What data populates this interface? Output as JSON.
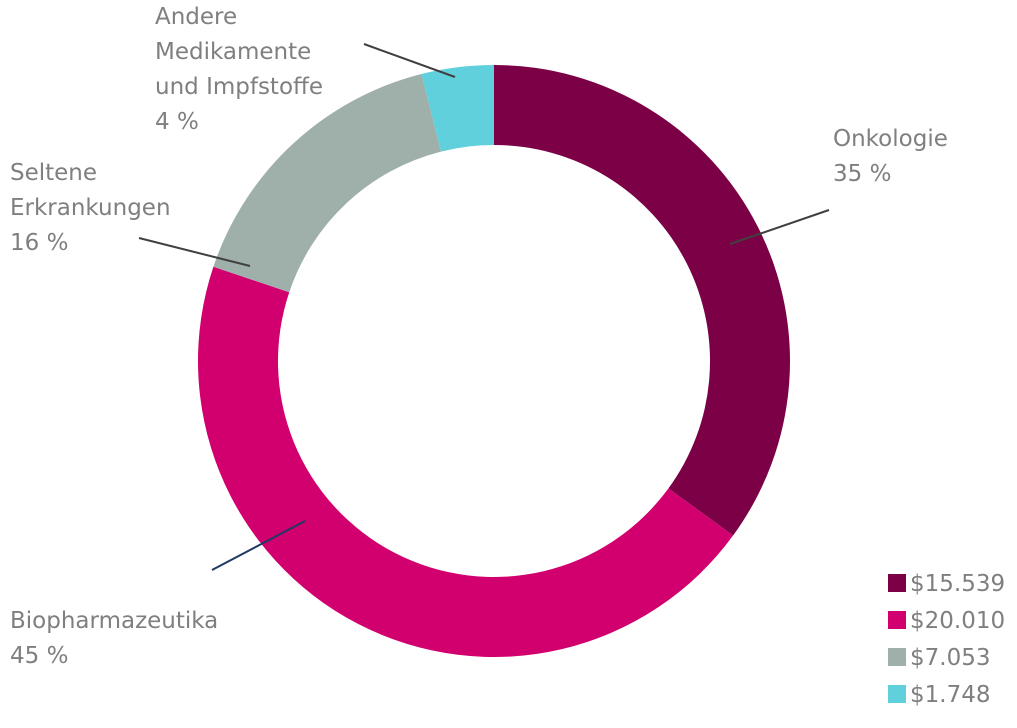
{
  "chart_data": {
    "type": "pie",
    "variant": "donut",
    "title": "",
    "slices": [
      {
        "label_lines": [
          "Onkologie"
        ],
        "percent_label": "35 %",
        "percent": 35,
        "value": 15539,
        "legend_label": "$15.539",
        "color": "#7b0046",
        "leader_color": "#404040"
      },
      {
        "label_lines": [
          "Biopharmazeutika"
        ],
        "percent_label": "45 %",
        "percent": 45,
        "value": 20010,
        "legend_label": "$20.010",
        "color": "#d2006e",
        "leader_color": "#1f3864"
      },
      {
        "label_lines": [
          "Seltene",
          "Erkrankungen"
        ],
        "percent_label": "16 %",
        "percent": 16,
        "value": 7053,
        "legend_label": "$7.053",
        "color": "#9fafa9",
        "leader_color": "#404040"
      },
      {
        "label_lines": [
          "Andere",
          "Medikamente",
          "und Impfstoffe"
        ],
        "percent_label": "4 %",
        "percent": 4,
        "value": 1748,
        "legend_label": "$1.748",
        "color": "#60d0dc",
        "leader_color": "#404040"
      }
    ],
    "legend_position": "bottom-right"
  }
}
